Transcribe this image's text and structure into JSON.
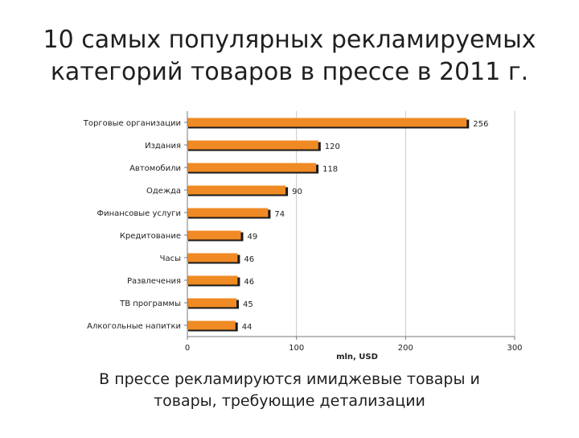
{
  "slide": {
    "title_lines": [
      "10 самых популярных рекламируемых",
      "категорий товаров в прессе в 2011 г."
    ],
    "caption_lines": [
      "В прессе рекламируются имиджевые товары и",
      "товары, требующие детализации"
    ]
  },
  "chart_data": {
    "type": "bar",
    "orientation": "horizontal",
    "categories": [
      "Торговые организации",
      "Издания",
      "Автомобили",
      "Одежда",
      "Финансовые услуги",
      "Кредитование",
      "Часы",
      "Развлечения",
      "ТВ программы",
      "Алкогольные напитки"
    ],
    "values": [
      256,
      120,
      118,
      90,
      74,
      49,
      46,
      46,
      45,
      44
    ],
    "xlabel": "mln, USD",
    "ylabel": "",
    "xlim": [
      0,
      300
    ],
    "xticks": [
      0,
      100,
      200,
      300
    ],
    "grid": "vertical",
    "legend": "none",
    "colors": {
      "bar": "#f08a24",
      "bar_shadow": "#1a1a1a",
      "grid": "#c9c9c9",
      "axis": "#7a7a7a"
    }
  }
}
